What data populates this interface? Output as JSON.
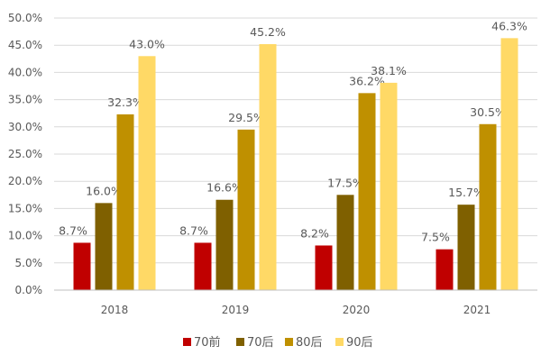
{
  "chart_data": {
    "type": "bar",
    "title": "",
    "xlabel": "",
    "ylabel": "",
    "categories": [
      "2018",
      "2019",
      "2020",
      "2021"
    ],
    "ylim": [
      0,
      50
    ],
    "yticks": [
      "0.0%",
      "5.0%",
      "10.0%",
      "15.0%",
      "20.0%",
      "25.0%",
      "30.0%",
      "35.0%",
      "40.0%",
      "45.0%",
      "50.0%"
    ],
    "grid": true,
    "legend_position": "bottom",
    "series": [
      {
        "name": "70前",
        "color": "#C00000",
        "values": [
          8.7,
          8.7,
          8.2,
          7.5
        ],
        "labels": [
          "8.7%",
          "8.7%",
          "8.2%",
          "7.5%"
        ]
      },
      {
        "name": "70后",
        "color": "#7F6000",
        "values": [
          16.0,
          16.6,
          17.5,
          15.7
        ],
        "labels": [
          "16.0%",
          "16.6%",
          "17.5%",
          "15.7%"
        ]
      },
      {
        "name": "80后",
        "color": "#BF9000",
        "values": [
          32.3,
          29.5,
          36.2,
          30.5
        ],
        "labels": [
          "32.3%",
          "29.5%",
          "36.2%",
          "30.5%"
        ]
      },
      {
        "name": "90后",
        "color": "#FFD966",
        "values": [
          43.0,
          45.2,
          38.1,
          46.3
        ],
        "labels": [
          "43.0%",
          "45.2%",
          "38.1%",
          "46.3%"
        ]
      }
    ]
  }
}
